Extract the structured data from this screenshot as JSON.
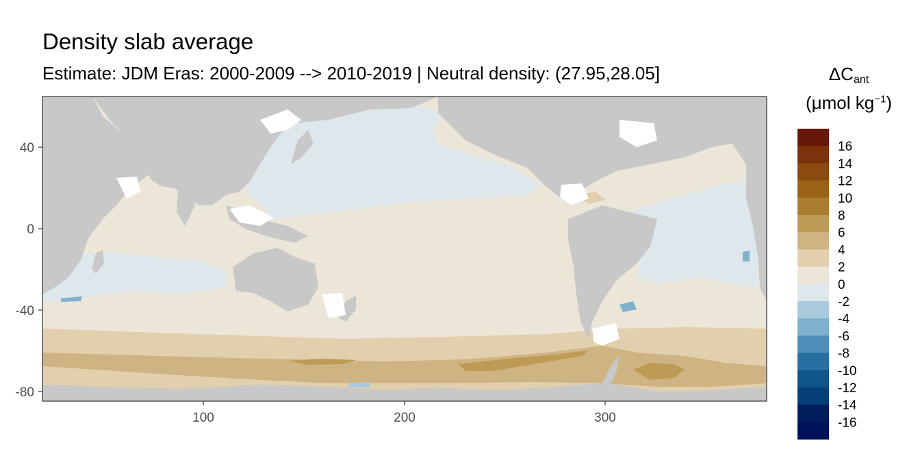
{
  "title": "Density slab average",
  "subtitle": "Estimate: JDM Eras: 2000-2009 --> 2010-2019 | Neutral density: (27.95,28.05]",
  "legend": {
    "title_main": "ΔC",
    "title_sub": "ant",
    "unit_open": "(μmol kg",
    "unit_exp": "−1",
    "unit_close": ")",
    "bins": [
      {
        "label": "16",
        "color": "#67180a"
      },
      {
        "label": "14",
        "color": "#7c330c"
      },
      {
        "label": "12",
        "color": "#8b4a0e"
      },
      {
        "label": "10",
        "color": "#9a6216"
      },
      {
        "label": "8",
        "color": "#ab7d30"
      },
      {
        "label": "6",
        "color": "#bd9b55"
      },
      {
        "label": "4",
        "color": "#cfb483"
      },
      {
        "label": "2",
        "color": "#e2cfad"
      },
      {
        "label": "0",
        "color": "#ece6d9"
      },
      {
        "label": "-2",
        "color": "#dde7ec"
      },
      {
        "label": "-4",
        "color": "#abc9dc"
      },
      {
        "label": "-6",
        "color": "#7fb0cc"
      },
      {
        "label": "-8",
        "color": "#4d8db7"
      },
      {
        "label": "-10",
        "color": "#266fa0"
      },
      {
        "label": "-12",
        "color": "#0f5589"
      },
      {
        "label": "-14",
        "color": "#063f77"
      },
      {
        "label": "-16",
        "color": "#001e5c"
      }
    ],
    "extra_swatch_color": "#00125a"
  },
  "map": {
    "land_color": "#c8c8c8",
    "nodata_color": "#ffffff",
    "x_ticks": [
      "100",
      "200",
      "300"
    ],
    "y_ticks": [
      "40",
      "0",
      "-40",
      "-80"
    ],
    "x_range": [
      20,
      380
    ],
    "y_range": [
      -85,
      65
    ]
  }
}
